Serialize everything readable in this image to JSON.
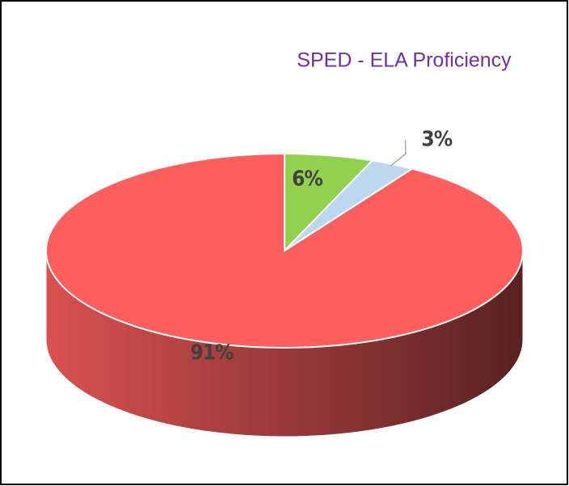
{
  "chart_data": {
    "type": "pie",
    "title": "SPED - ELA Proficiency",
    "values": [
      6,
      3,
      91
    ],
    "value_labels": [
      "6%",
      "3%",
      "91%"
    ],
    "colors": [
      "#92d050",
      "#bdd7ee",
      "#ff5f5f"
    ],
    "three_d": true
  }
}
